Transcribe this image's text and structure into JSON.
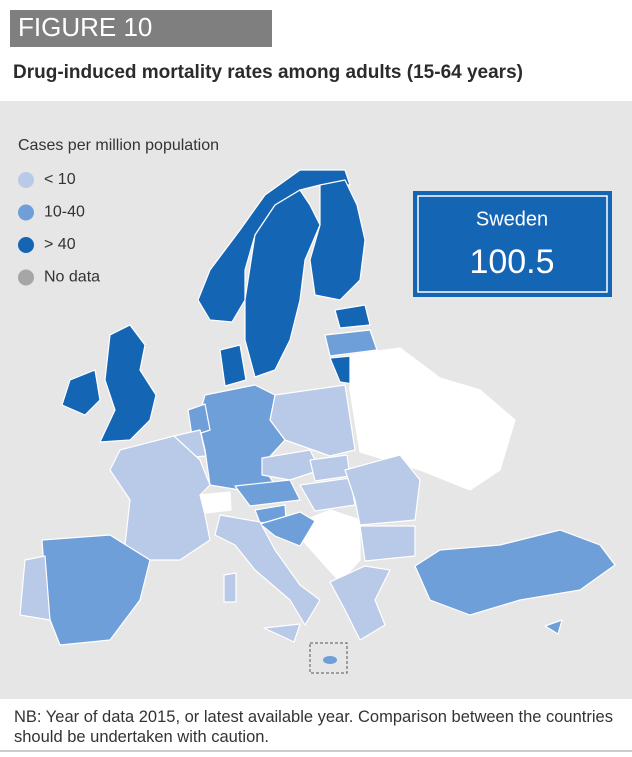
{
  "header": {
    "figure_label": "FIGURE 10",
    "title": "Drug-induced mortality rates among adults (15-64 years)"
  },
  "legend": {
    "title": "Cases per million population",
    "items": [
      {
        "label": "< 10",
        "color": "#b9c9e8"
      },
      {
        "label": "10-40",
        "color": "#6f9fd8"
      },
      {
        "label": "> 40",
        "color": "#1565b5"
      },
      {
        "label": "No data",
        "color": "#a6a6a6"
      }
    ]
  },
  "highlight": {
    "country": "Sweden",
    "value": 100.5
  },
  "note": "NB: Year of data 2015, or latest available year. Comparison between the countries should be undertaken with caution."
}
